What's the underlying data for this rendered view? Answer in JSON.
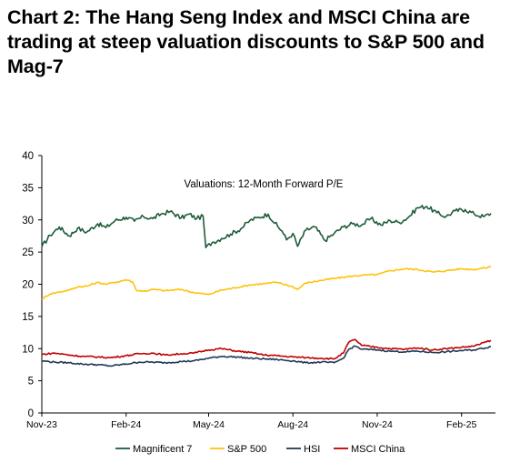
{
  "header": {
    "title": "Chart 2: The Hang Seng Index and MSCI China are trading at steep valuation discounts to S&P 500 and Mag-7"
  },
  "chart_data": {
    "type": "line",
    "title": "",
    "annotation": "Valuations: 12-Month Forward P/E",
    "xlabel": "",
    "ylabel": "",
    "ylim": [
      0,
      40
    ],
    "yticks": [
      0,
      5,
      10,
      15,
      20,
      25,
      30,
      35,
      40
    ],
    "xlim": [
      "2023-11-01",
      "2025-03-10"
    ],
    "xtick_labels": [
      {
        "date": "2023-11-01",
        "label": "Nov-23"
      },
      {
        "date": "2024-02-01",
        "label": "Feb-24"
      },
      {
        "date": "2024-05-01",
        "label": "May-24"
      },
      {
        "date": "2024-08-01",
        "label": "Aug-24"
      },
      {
        "date": "2024-11-01",
        "label": "Nov-24"
      },
      {
        "date": "2025-02-01",
        "label": "Feb-25"
      }
    ],
    "grid": false,
    "legend_position": "bottom",
    "series": [
      {
        "name": "Magnificent 7",
        "color": "#1e5c3a",
        "x": [
          "2023-11-01",
          "2023-11-10",
          "2023-11-20",
          "2023-12-01",
          "2023-12-10",
          "2023-12-20",
          "2024-01-01",
          "2024-01-10",
          "2024-01-20",
          "2024-02-01",
          "2024-02-10",
          "2024-02-20",
          "2024-03-01",
          "2024-03-10",
          "2024-03-20",
          "2024-04-01",
          "2024-04-10",
          "2024-04-18",
          "2024-04-25",
          "2024-04-28",
          "2024-05-05",
          "2024-05-15",
          "2024-05-25",
          "2024-06-05",
          "2024-06-15",
          "2024-06-25",
          "2024-07-05",
          "2024-07-12",
          "2024-07-20",
          "2024-07-25",
          "2024-08-01",
          "2024-08-06",
          "2024-08-15",
          "2024-08-25",
          "2024-09-05",
          "2024-09-15",
          "2024-09-25",
          "2024-10-05",
          "2024-10-15",
          "2024-10-25",
          "2024-11-05",
          "2024-11-15",
          "2024-11-25",
          "2024-12-05",
          "2024-12-15",
          "2024-12-25",
          "2025-01-05",
          "2025-01-15",
          "2025-01-25",
          "2025-02-05",
          "2025-02-15",
          "2025-02-25",
          "2025-03-05"
        ],
        "values": [
          25.8,
          27.6,
          28.9,
          27.5,
          28.7,
          28.1,
          29.4,
          28.8,
          29.9,
          30.4,
          29.8,
          30.5,
          30.2,
          30.9,
          31.3,
          30.3,
          30.9,
          30.2,
          30.6,
          25.7,
          26.5,
          27.1,
          27.8,
          28.6,
          29.9,
          30.4,
          30.9,
          29.5,
          28.3,
          26.9,
          27.9,
          25.9,
          28.4,
          28.9,
          26.8,
          27.9,
          28.9,
          29.4,
          29.2,
          30.2,
          29.2,
          29.9,
          29.6,
          30.4,
          31.9,
          32.1,
          31.1,
          30.5,
          31.4,
          31.6,
          30.9,
          30.5,
          31.0
        ]
      },
      {
        "name": "S&P 500",
        "color": "#ffc20e",
        "x": [
          "2023-11-01",
          "2023-11-10",
          "2023-11-20",
          "2023-12-01",
          "2023-12-10",
          "2023-12-20",
          "2024-01-01",
          "2024-01-10",
          "2024-01-20",
          "2024-02-01",
          "2024-02-08",
          "2024-02-12",
          "2024-02-20",
          "2024-03-01",
          "2024-03-15",
          "2024-04-01",
          "2024-04-15",
          "2024-05-01",
          "2024-05-15",
          "2024-06-01",
          "2024-06-15",
          "2024-07-01",
          "2024-07-15",
          "2024-08-01",
          "2024-08-06",
          "2024-08-15",
          "2024-09-01",
          "2024-09-15",
          "2024-10-01",
          "2024-10-15",
          "2024-11-01",
          "2024-11-15",
          "2024-12-01",
          "2024-12-15",
          "2025-01-01",
          "2025-01-15",
          "2025-02-01",
          "2025-02-15",
          "2025-03-05"
        ],
        "values": [
          17.7,
          18.5,
          18.8,
          19.1,
          19.6,
          19.7,
          20.3,
          20.0,
          20.3,
          20.7,
          20.4,
          19.1,
          18.9,
          19.2,
          19.0,
          19.2,
          18.7,
          18.4,
          19.1,
          19.5,
          19.9,
          20.1,
          20.3,
          19.6,
          19.2,
          20.2,
          20.6,
          20.9,
          21.2,
          21.4,
          21.5,
          22.1,
          22.4,
          22.3,
          21.9,
          22.1,
          22.4,
          22.3,
          22.7
        ]
      },
      {
        "name": "HSI",
        "color": "#1f3a56",
        "x": [
          "2023-11-01",
          "2023-11-15",
          "2023-12-01",
          "2023-12-15",
          "2024-01-01",
          "2024-01-15",
          "2024-02-01",
          "2024-02-15",
          "2024-03-01",
          "2024-03-15",
          "2024-04-01",
          "2024-04-15",
          "2024-05-01",
          "2024-05-15",
          "2024-06-01",
          "2024-06-15",
          "2024-07-01",
          "2024-07-15",
          "2024-08-01",
          "2024-08-15",
          "2024-09-01",
          "2024-09-15",
          "2024-09-25",
          "2024-10-01",
          "2024-10-08",
          "2024-10-15",
          "2024-11-01",
          "2024-11-15",
          "2024-12-01",
          "2024-12-15",
          "2025-01-01",
          "2025-01-15",
          "2025-02-01",
          "2025-02-15",
          "2025-03-05"
        ],
        "values": [
          8.1,
          7.9,
          7.8,
          7.6,
          7.5,
          7.3,
          7.6,
          7.9,
          7.9,
          7.8,
          8.0,
          8.1,
          8.5,
          8.8,
          8.7,
          8.5,
          8.4,
          8.3,
          8.1,
          7.8,
          7.9,
          7.8,
          8.5,
          9.9,
          10.4,
          9.9,
          9.8,
          9.6,
          9.5,
          9.6,
          9.4,
          9.5,
          9.7,
          9.8,
          10.3
        ]
      },
      {
        "name": "MSCI China",
        "color": "#c00000",
        "x": [
          "2023-11-01",
          "2023-11-15",
          "2023-12-01",
          "2023-12-15",
          "2024-01-01",
          "2024-01-15",
          "2024-02-01",
          "2024-02-15",
          "2024-03-01",
          "2024-03-15",
          "2024-04-01",
          "2024-04-15",
          "2024-05-01",
          "2024-05-15",
          "2024-06-01",
          "2024-06-15",
          "2024-07-01",
          "2024-07-15",
          "2024-08-01",
          "2024-08-15",
          "2024-09-01",
          "2024-09-15",
          "2024-09-25",
          "2024-10-01",
          "2024-10-08",
          "2024-10-15",
          "2024-11-01",
          "2024-11-15",
          "2024-12-01",
          "2024-12-15",
          "2025-01-01",
          "2025-01-15",
          "2025-02-01",
          "2025-02-15",
          "2025-03-05"
        ],
        "values": [
          9.1,
          9.3,
          9.0,
          8.8,
          8.7,
          8.6,
          8.9,
          9.2,
          9.3,
          9.0,
          9.2,
          9.3,
          9.8,
          10.0,
          9.6,
          9.4,
          9.0,
          8.9,
          8.7,
          8.6,
          8.5,
          8.4,
          9.3,
          11.0,
          11.4,
          10.5,
          10.2,
          10.0,
          9.9,
          10.1,
          9.8,
          10.0,
          10.2,
          10.4,
          11.3
        ]
      }
    ]
  }
}
